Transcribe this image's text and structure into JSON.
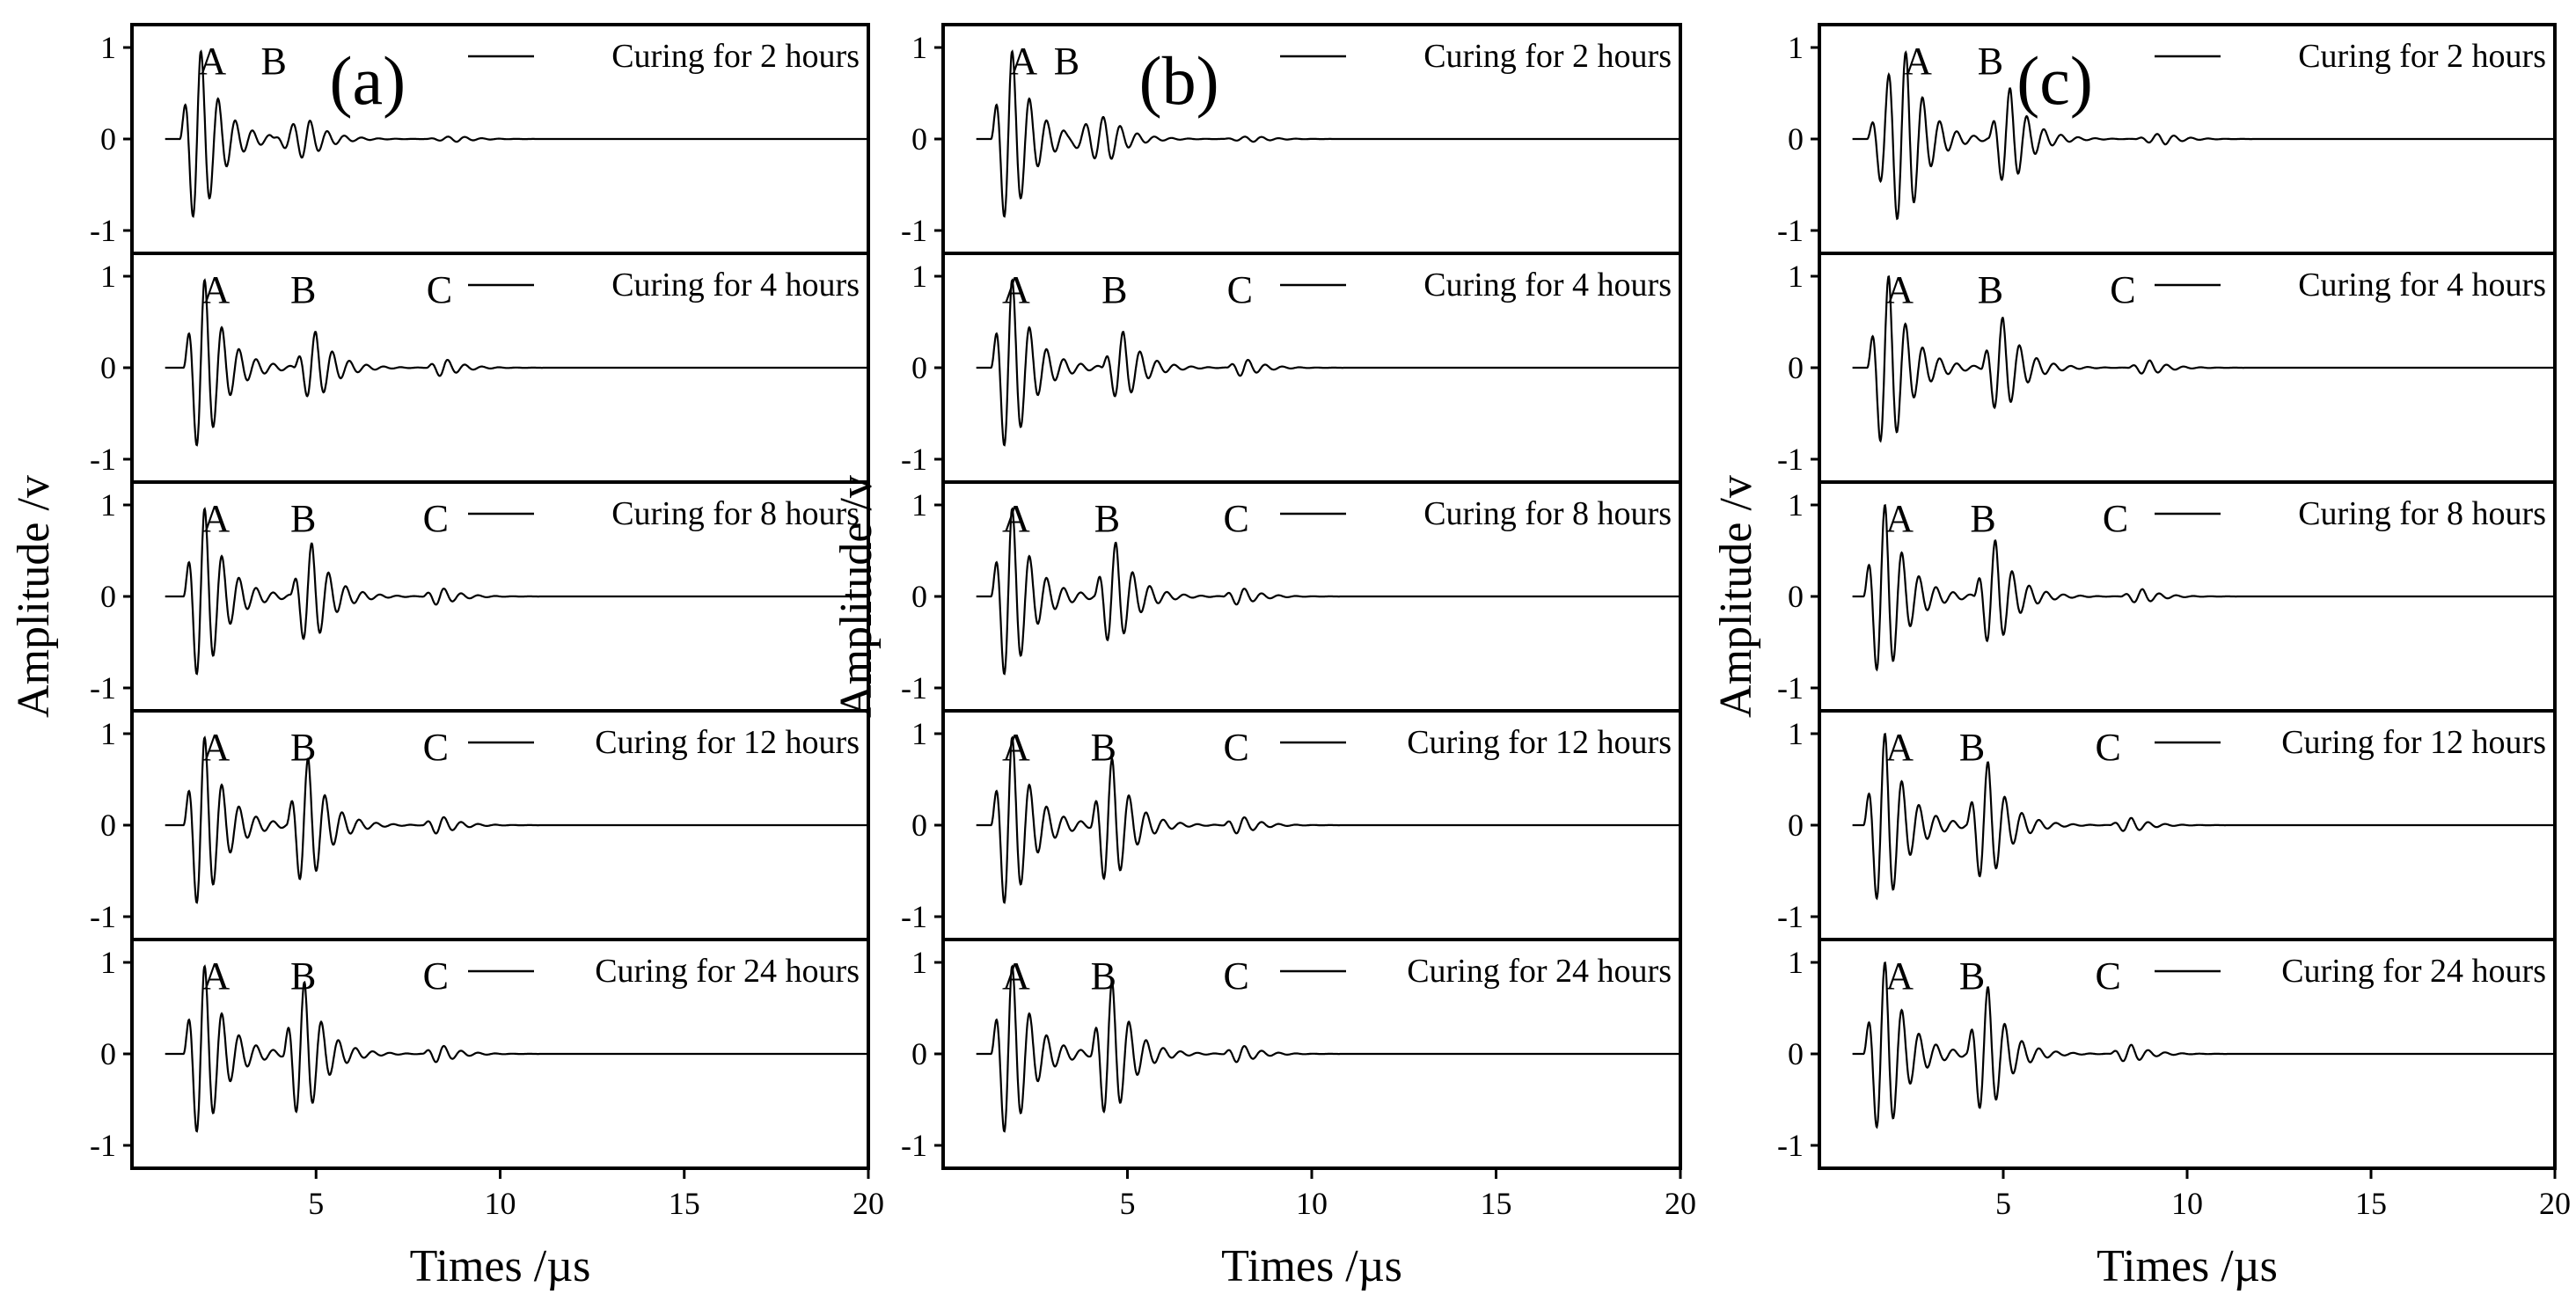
{
  "chart_data": [
    {
      "type": "line",
      "panel_label": "(a)",
      "xlabel": "Times /µs",
      "ylabel": "Amplitude /v",
      "xlim": [
        0,
        20
      ],
      "x_ticks": [
        "5",
        "10",
        "15",
        "20"
      ],
      "y_ticks": [
        "1",
        "0",
        "-1"
      ],
      "ylim": [
        -1.15,
        1.15
      ],
      "series": [
        {
          "name": "Curing for 2 hours",
          "labels": [
            {
              "text": "A",
              "x": 1.8
            },
            {
              "text": "B",
              "x": 3.5
            }
          ],
          "packets": [
            [
              1.3,
              1.0,
              0.55,
              0.6
            ],
            [
              3.8,
              0.22,
              1.0,
              0.55
            ],
            [
              8.0,
              0.03,
              0.9,
              0.5
            ]
          ]
        },
        {
          "name": "Curing for 4 hours",
          "labels": [
            {
              "text": "A",
              "x": 1.9
            },
            {
              "text": "B",
              "x": 4.3
            },
            {
              "text": "C",
              "x": 8.0
            }
          ],
          "packets": [
            [
              1.4,
              1.0,
              0.55,
              0.6
            ],
            [
              4.4,
              0.4,
              0.6,
              0.55
            ],
            [
              8.0,
              0.1,
              0.5,
              0.5
            ]
          ]
        },
        {
          "name": "Curing for 8 hours",
          "labels": [
            {
              "text": "A",
              "x": 1.9
            },
            {
              "text": "B",
              "x": 4.3
            },
            {
              "text": "C",
              "x": 7.9
            }
          ],
          "packets": [
            [
              1.4,
              1.0,
              0.55,
              0.6
            ],
            [
              4.3,
              0.58,
              0.6,
              0.55
            ],
            [
              7.9,
              0.1,
              0.5,
              0.5
            ]
          ]
        },
        {
          "name": "Curing for 12 hours",
          "labels": [
            {
              "text": "A",
              "x": 1.9
            },
            {
              "text": "B",
              "x": 4.3
            },
            {
              "text": "C",
              "x": 7.9
            }
          ],
          "packets": [
            [
              1.4,
              1.0,
              0.55,
              0.6
            ],
            [
              4.2,
              0.72,
              0.6,
              0.55
            ],
            [
              7.9,
              0.1,
              0.5,
              0.5
            ]
          ]
        },
        {
          "name": "Curing for 24 hours",
          "labels": [
            {
              "text": "A",
              "x": 1.9
            },
            {
              "text": "B",
              "x": 4.3
            },
            {
              "text": "C",
              "x": 7.9
            }
          ],
          "packets": [
            [
              1.4,
              1.0,
              0.55,
              0.6
            ],
            [
              4.1,
              0.78,
              0.6,
              0.55
            ],
            [
              7.9,
              0.1,
              0.5,
              0.5
            ]
          ]
        }
      ]
    },
    {
      "type": "line",
      "panel_label": "(b)",
      "xlabel": "Times /µs",
      "ylabel": "Amplitude /v",
      "xlim": [
        0,
        20
      ],
      "x_ticks": [
        "5",
        "10",
        "15",
        "20"
      ],
      "y_ticks": [
        "1",
        "0",
        "-1"
      ],
      "ylim": [
        -1.15,
        1.15
      ],
      "series": [
        {
          "name": "Curing for 2 hours",
          "labels": [
            {
              "text": "A",
              "x": 1.8
            },
            {
              "text": "B",
              "x": 3.0
            }
          ],
          "packets": [
            [
              1.3,
              1.0,
              0.55,
              0.6
            ],
            [
              3.3,
              0.25,
              1.2,
              0.55
            ],
            [
              7.6,
              0.03,
              0.9,
              0.5
            ]
          ]
        },
        {
          "name": "Curing for 4 hours",
          "labels": [
            {
              "text": "A",
              "x": 1.6
            },
            {
              "text": "B",
              "x": 4.3
            },
            {
              "text": "C",
              "x": 7.7
            }
          ],
          "packets": [
            [
              1.3,
              1.0,
              0.55,
              0.6
            ],
            [
              4.3,
              0.4,
              0.6,
              0.55
            ],
            [
              7.7,
              0.1,
              0.5,
              0.5
            ]
          ]
        },
        {
          "name": "Curing for 8 hours",
          "labels": [
            {
              "text": "A",
              "x": 1.6
            },
            {
              "text": "B",
              "x": 4.1
            },
            {
              "text": "C",
              "x": 7.6
            }
          ],
          "packets": [
            [
              1.3,
              1.0,
              0.55,
              0.6
            ],
            [
              4.1,
              0.58,
              0.6,
              0.55
            ],
            [
              7.6,
              0.1,
              0.5,
              0.5
            ]
          ]
        },
        {
          "name": "Curing for 12 hours",
          "labels": [
            {
              "text": "A",
              "x": 1.6
            },
            {
              "text": "B",
              "x": 4.0
            },
            {
              "text": "C",
              "x": 7.6
            }
          ],
          "packets": [
            [
              1.3,
              1.0,
              0.55,
              0.6
            ],
            [
              4.0,
              0.72,
              0.6,
              0.55
            ],
            [
              7.6,
              0.1,
              0.5,
              0.5
            ]
          ]
        },
        {
          "name": "Curing for 24 hours",
          "labels": [
            {
              "text": "A",
              "x": 1.6
            },
            {
              "text": "B",
              "x": 4.0
            },
            {
              "text": "C",
              "x": 7.6
            }
          ],
          "packets": [
            [
              1.3,
              1.0,
              0.55,
              0.6
            ],
            [
              4.0,
              0.78,
              0.6,
              0.55
            ],
            [
              7.6,
              0.1,
              0.5,
              0.5
            ]
          ]
        }
      ]
    },
    {
      "type": "line",
      "panel_label": "(c)",
      "xlabel": "Times /µs",
      "ylabel": "Amplitude /v",
      "xlim": [
        0,
        20
      ],
      "x_ticks": [
        "5",
        "10",
        "15",
        "20"
      ],
      "y_ticks": [
        "1",
        "0",
        "-1"
      ],
      "ylim": [
        -1.15,
        1.15
      ],
      "series": [
        {
          "name": "Curing for 2 hours",
          "labels": [
            {
              "text": "A",
              "x": 2.3
            },
            {
              "text": "B",
              "x": 4.3
            }
          ],
          "packets": [
            [
              1.3,
              0.95,
              1.1,
              0.55
            ],
            [
              4.6,
              0.55,
              0.6,
              0.55
            ],
            [
              8.6,
              0.06,
              0.8,
              0.5
            ]
          ]
        },
        {
          "name": "Curing for 4 hours",
          "labels": [
            {
              "text": "A",
              "x": 1.8
            },
            {
              "text": "B",
              "x": 4.3
            },
            {
              "text": "C",
              "x": 7.9
            }
          ],
          "packets": [
            [
              1.3,
              1.0,
              0.6,
              0.6
            ],
            [
              4.4,
              0.55,
              0.6,
              0.55
            ],
            [
              8.4,
              0.08,
              0.6,
              0.5
            ]
          ]
        },
        {
          "name": "Curing for 8 hours",
          "labels": [
            {
              "text": "A",
              "x": 1.8
            },
            {
              "text": "B",
              "x": 4.1
            },
            {
              "text": "C",
              "x": 7.7
            }
          ],
          "packets": [
            [
              1.2,
              1.0,
              0.6,
              0.6
            ],
            [
              4.2,
              0.62,
              0.6,
              0.55
            ],
            [
              8.2,
              0.08,
              0.6,
              0.5
            ]
          ]
        },
        {
          "name": "Curing for 12 hours",
          "labels": [
            {
              "text": "A",
              "x": 1.8
            },
            {
              "text": "B",
              "x": 3.8
            },
            {
              "text": "C",
              "x": 7.5
            }
          ],
          "packets": [
            [
              1.2,
              1.0,
              0.6,
              0.6
            ],
            [
              4.0,
              0.68,
              0.6,
              0.55
            ],
            [
              7.9,
              0.08,
              0.6,
              0.5
            ]
          ]
        },
        {
          "name": "Curing for 24 hours",
          "labels": [
            {
              "text": "A",
              "x": 1.8
            },
            {
              "text": "B",
              "x": 3.8
            },
            {
              "text": "C",
              "x": 7.5
            }
          ],
          "packets": [
            [
              1.2,
              1.0,
              0.6,
              0.6
            ],
            [
              4.0,
              0.72,
              0.6,
              0.55
            ],
            [
              7.9,
              0.1,
              0.6,
              0.5
            ]
          ]
        }
      ]
    }
  ]
}
